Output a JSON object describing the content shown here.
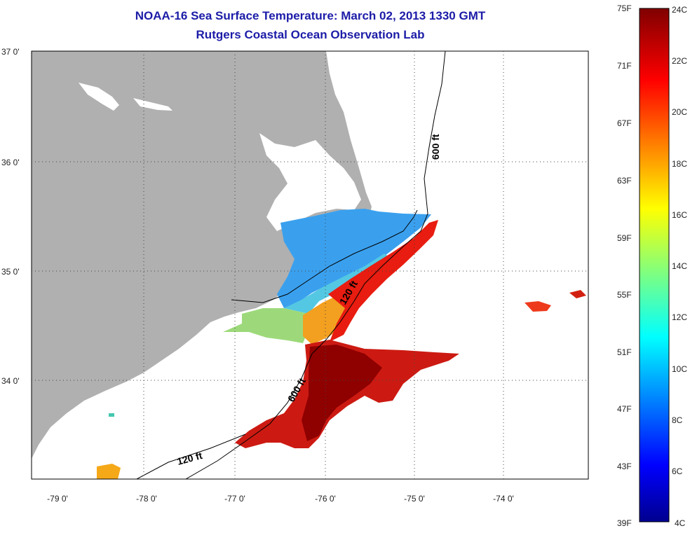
{
  "title": "NOAA-16 Sea Surface Temperature:  March 02, 2013 1330 GMT",
  "subtitle": "Rutgers Coastal Ocean Observation Lab",
  "lat_labels": [
    "37 0'",
    "36 0'",
    "35 0'",
    "34 0'"
  ],
  "lon_labels": [
    "-79 0'",
    "-78 0'",
    "-77 0'",
    "-76 0'",
    "-75 0'",
    "-74 0'"
  ],
  "isobaths": [
    "600 ft",
    "120 ft",
    "600 ft",
    "120 ft"
  ],
  "colorbar": {
    "fahrenheit": [
      "75F",
      "71F",
      "67F",
      "63F",
      "59F",
      "55F",
      "51F",
      "47F",
      "43F",
      "39F"
    ],
    "celsius": [
      "24C",
      "22C",
      "20C",
      "18C",
      "16C",
      "14C",
      "12C",
      "10C",
      "8C",
      "6C",
      "4C"
    ]
  },
  "colors": {
    "title": "#1c1ca8",
    "land": "#b0b0b0"
  }
}
